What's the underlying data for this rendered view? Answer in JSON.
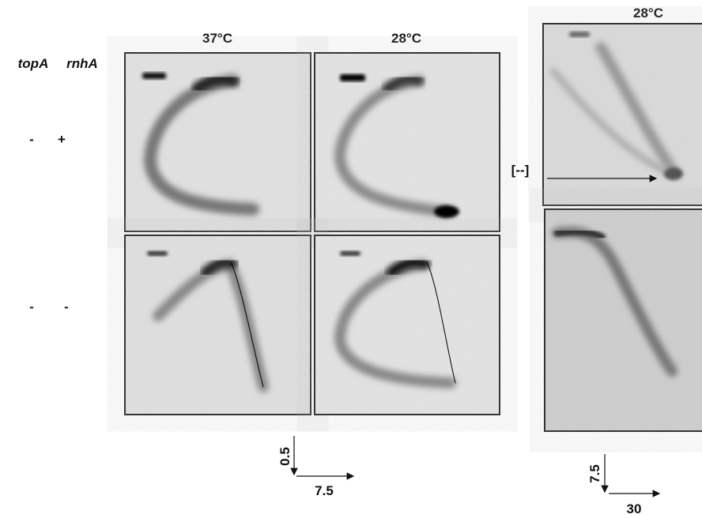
{
  "columns": {
    "0": "37°C",
    "1": "28°C",
    "2": "28°C"
  },
  "genotype_header": {
    "gene1": "topA",
    "gene2": "rnhA"
  },
  "rows": [
    [
      "-",
      "+"
    ],
    [
      "-",
      "-"
    ]
  ],
  "bracket_label": "[--]",
  "axes": {
    "left_vertical": "0.5",
    "left_horizontal": "7.5",
    "right_vertical": "7.5",
    "right_horizontal": "30"
  }
}
